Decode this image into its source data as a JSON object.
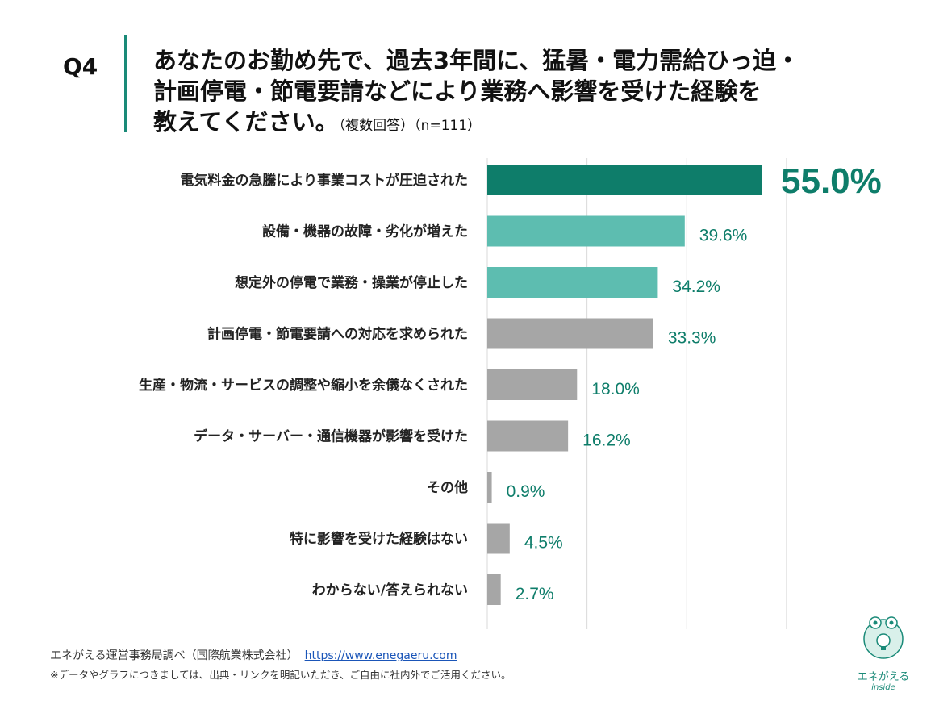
{
  "question": {
    "number": "Q4",
    "line1": "あなたのお勤め先で、過去3年間に、猛暑・電力需給ひっ迫・",
    "line2": "計画停電・節電要請などにより業務へ影響を受けた経験を",
    "line3": "教えてください。",
    "note": "（複数回答）（n=111）"
  },
  "chart_data": {
    "type": "bar",
    "orientation": "horizontal",
    "categories": [
      "電気料金の急騰により事業コストが圧迫された",
      "設備・機器の故障・劣化が増えた",
      "想定外の停電で業務・操業が停止した",
      "計画停電・節電要請への対応を求められた",
      "生産・物流・サービスの調整や縮小を余儀なくされた",
      "データ・サーバー・通信機器が影響を受けた",
      "その他",
      "特に影響を受けた経験はない",
      "わからない/答えられない"
    ],
    "values": [
      55.0,
      39.6,
      34.2,
      33.3,
      18.0,
      16.2,
      0.9,
      4.5,
      2.7
    ],
    "value_labels": [
      "55.0%",
      "39.6%",
      "34.2%",
      "33.3%",
      "18.0%",
      "16.2%",
      "0.9%",
      "4.5%",
      "2.7%"
    ],
    "xlim": [
      0,
      60
    ],
    "grid": true,
    "colors": [
      "#0e7d6a",
      "#5dbdb0",
      "#5dbdb0",
      "#a6a6a6",
      "#a6a6a6",
      "#a6a6a6",
      "#a6a6a6",
      "#a6a6a6",
      "#a6a6a6"
    ],
    "label_color": "#0e7d6a"
  },
  "footer": {
    "source": "エネがえる運営事務局調べ（国際航業株式会社）",
    "url": "https://www.enegaeru.com",
    "note": "※データやグラフにつきましては、出典・リンクを明記いただき、ご自由に社内外でご活用ください。"
  },
  "logo": {
    "name": "エネがえる",
    "sub": "inside",
    "accent": "#1a8a78"
  }
}
